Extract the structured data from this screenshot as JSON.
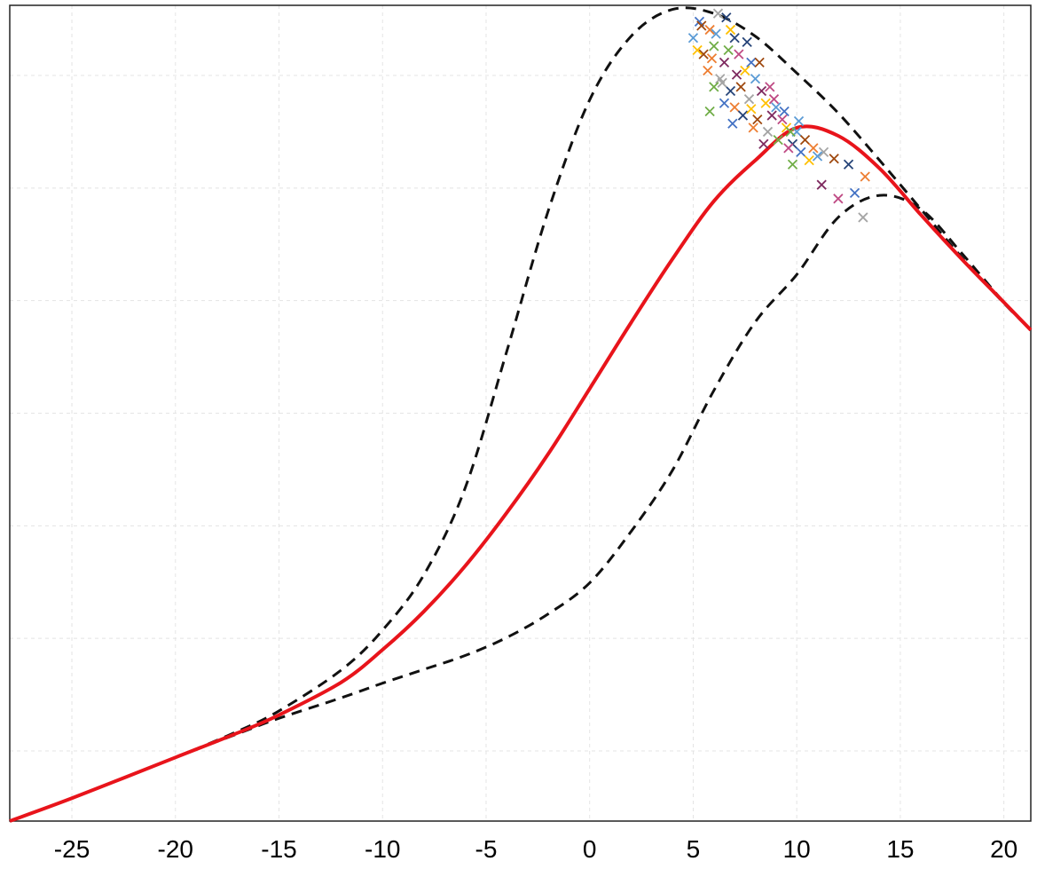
{
  "chart_data": {
    "type": "line",
    "title": "",
    "xlabel": "",
    "ylabel": "",
    "xlim": [
      -28,
      21.3
    ],
    "ylim": [
      0,
      1
    ],
    "xticks": [
      -25,
      -20,
      -15,
      -10,
      -5,
      0,
      5,
      10,
      15,
      20
    ],
    "xtick_labels": [
      "-25",
      "-20",
      "-15",
      "-10",
      "-5",
      "0",
      "5",
      "10",
      "15",
      "20"
    ],
    "ygrid": [
      0.086,
      0.224,
      0.362,
      0.5,
      0.638,
      0.776,
      0.914
    ],
    "grid": true,
    "colors": {
      "main_curve": "#e8141b",
      "bound_curves": "#111111",
      "grid": "#e4e4e4",
      "markers": [
        "#4472c4",
        "#ed7d31",
        "#a5a5a5",
        "#ffc000",
        "#5b9bd5",
        "#70ad47",
        "#264478",
        "#9e480e",
        "#7e2a5f",
        "#bf4a84"
      ]
    },
    "series": [
      {
        "style": "solid",
        "x": [
          -28,
          -25,
          -20,
          -17,
          -15,
          -12,
          -10,
          -8,
          -6,
          -4,
          -2,
          0,
          2,
          4,
          6,
          8,
          10,
          12,
          14,
          16,
          18,
          20,
          21.3
        ],
        "y": [
          0.0,
          0.028,
          0.078,
          0.108,
          0.13,
          0.17,
          0.21,
          0.257,
          0.313,
          0.378,
          0.45,
          0.53,
          0.611,
          0.689,
          0.76,
          0.81,
          0.85,
          0.84,
          0.8,
          0.743,
          0.688,
          0.636,
          0.602
        ]
      },
      {
        "style": "dashed",
        "x": [
          -28,
          -25,
          -20,
          -17,
          -15,
          -12,
          -10,
          -8,
          -6,
          -4,
          -2,
          0,
          2,
          4,
          6,
          8,
          10,
          12,
          14,
          16,
          18,
          20,
          21.3
        ],
        "y": [
          0.0,
          0.028,
          0.078,
          0.11,
          0.135,
          0.185,
          0.234,
          0.302,
          0.409,
          0.576,
          0.748,
          0.884,
          0.962,
          0.995,
          0.99,
          0.962,
          0.917,
          0.868,
          0.81,
          0.75,
          0.69,
          0.635,
          0.602
        ]
      },
      {
        "style": "dashed",
        "x": [
          -28,
          -25,
          -20,
          -17,
          -15,
          -12,
          -10,
          -8,
          -6,
          -4,
          -2,
          0,
          2,
          4,
          6,
          8,
          10,
          12,
          14,
          16,
          18,
          20,
          21.3
        ],
        "y": [
          0.0,
          0.028,
          0.078,
          0.107,
          0.126,
          0.151,
          0.169,
          0.186,
          0.203,
          0.225,
          0.254,
          0.292,
          0.355,
          0.43,
          0.528,
          0.612,
          0.67,
          0.74,
          0.767,
          0.75,
          0.695,
          0.636,
          0.602
        ]
      }
    ],
    "scatter_points": [
      [
        5.3,
        0.98
      ],
      [
        5.8,
        0.97
      ],
      [
        6.2,
        0.99
      ],
      [
        6.8,
        0.97
      ],
      [
        5.0,
        0.96
      ],
      [
        6.0,
        0.95
      ],
      [
        7.0,
        0.96
      ],
      [
        5.5,
        0.94
      ],
      [
        6.5,
        0.93
      ],
      [
        7.2,
        0.94
      ],
      [
        7.8,
        0.93
      ],
      [
        5.7,
        0.92
      ],
      [
        6.3,
        0.91
      ],
      [
        7.5,
        0.92
      ],
      [
        8.0,
        0.91
      ],
      [
        6.0,
        0.9
      ],
      [
        6.8,
        0.895
      ],
      [
        7.3,
        0.9
      ],
      [
        8.3,
        0.895
      ],
      [
        8.7,
        0.9
      ],
      [
        6.5,
        0.88
      ],
      [
        7.0,
        0.875
      ],
      [
        7.7,
        0.885
      ],
      [
        8.5,
        0.88
      ],
      [
        9.0,
        0.875
      ],
      [
        5.8,
        0.87
      ],
      [
        7.4,
        0.865
      ],
      [
        8.1,
        0.86
      ],
      [
        8.8,
        0.865
      ],
      [
        9.3,
        0.86
      ],
      [
        6.9,
        0.855
      ],
      [
        7.9,
        0.85
      ],
      [
        8.6,
        0.845
      ],
      [
        9.5,
        0.85
      ],
      [
        10.0,
        0.845
      ],
      [
        9.1,
        0.835
      ],
      [
        9.8,
        0.83
      ],
      [
        10.4,
        0.835
      ],
      [
        8.4,
        0.83
      ],
      [
        9.6,
        0.825
      ],
      [
        10.2,
        0.82
      ],
      [
        10.8,
        0.825
      ],
      [
        11.3,
        0.82
      ],
      [
        10.6,
        0.81
      ],
      [
        11.0,
        0.815
      ],
      [
        9.8,
        0.805
      ],
      [
        12.5,
        0.805
      ],
      [
        11.8,
        0.812
      ],
      [
        11.2,
        0.78
      ],
      [
        12.0,
        0.763
      ],
      [
        12.8,
        0.77
      ],
      [
        13.3,
        0.79
      ],
      [
        13.2,
        0.74
      ],
      [
        5.2,
        0.945
      ],
      [
        6.1,
        0.965
      ],
      [
        6.7,
        0.945
      ],
      [
        7.6,
        0.955
      ],
      [
        8.2,
        0.93
      ],
      [
        7.1,
        0.915
      ],
      [
        8.9,
        0.885
      ],
      [
        9.4,
        0.87
      ],
      [
        5.9,
        0.935
      ],
      [
        6.4,
        0.905
      ],
      [
        7.8,
        0.873
      ],
      [
        10.1,
        0.858
      ],
      [
        9.7,
        0.845
      ],
      [
        6.6,
        0.985
      ],
      [
        5.4,
        0.975
      ]
    ]
  }
}
